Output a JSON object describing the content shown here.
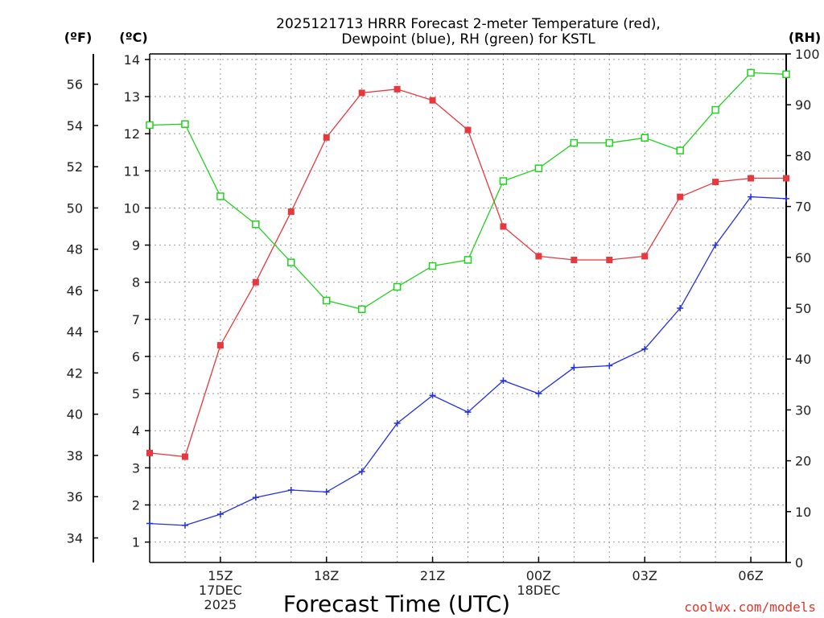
{
  "chart_data": {
    "type": "line",
    "title_line1": "2025121713 HRRR Forecast 2-meter Temperature (red),",
    "title_line2": "Dewpoint (blue), RH (green) for KSTL",
    "xlabel": "Forecast Time (UTC)",
    "credit": "coolwx.com/models",
    "unit_f": "(ºF)",
    "unit_c": "(ºC)",
    "unit_rh": "(RH)",
    "x_hours": [
      13,
      14,
      15,
      16,
      17,
      18,
      19,
      20,
      21,
      22,
      23,
      24,
      25,
      26,
      27,
      28,
      29,
      30,
      31
    ],
    "x_ticks": [
      {
        "hour": 15,
        "line1": "15Z",
        "line2": "17DEC",
        "line3": "2025"
      },
      {
        "hour": 18,
        "line1": "18Z",
        "line2": "",
        "line3": ""
      },
      {
        "hour": 21,
        "line1": "21Z",
        "line2": "",
        "line3": ""
      },
      {
        "hour": 24,
        "line1": "00Z",
        "line2": "18DEC",
        "line3": ""
      },
      {
        "hour": 27,
        "line1": "03Z",
        "line2": "",
        "line3": ""
      },
      {
        "hour": 30,
        "line1": "06Z",
        "line2": "",
        "line3": ""
      }
    ],
    "xlim": [
      13,
      31
    ],
    "ylim_c": [
      0.45,
      14.15
    ],
    "ylim_rh": [
      0,
      100
    ],
    "ylim_f": [
      32.81,
      57.47
    ],
    "yticks_c": [
      "1",
      "2",
      "3",
      "4",
      "5",
      "6",
      "7",
      "8",
      "9",
      "10",
      "11",
      "12",
      "13",
      "14"
    ],
    "yticks_f": [
      "34",
      "36",
      "38",
      "40",
      "42",
      "44",
      "46",
      "48",
      "50",
      "52",
      "54",
      "56"
    ],
    "yticks_rh": [
      "0",
      "10",
      "20",
      "30",
      "40",
      "50",
      "60",
      "70",
      "80",
      "90",
      "100"
    ],
    "series": [
      {
        "name": "Temperature",
        "unit": "C",
        "color": "#e8383d",
        "marker": "filled-square",
        "values": [
          3.4,
          3.3,
          6.3,
          8.0,
          9.9,
          11.9,
          13.1,
          13.2,
          12.9,
          12.1,
          9.5,
          8.7,
          8.6,
          8.6,
          8.7,
          10.3,
          10.7,
          10.8,
          10.8
        ]
      },
      {
        "name": "Dewpoint",
        "unit": "C",
        "color": "#2330e0",
        "marker": "plus",
        "values": [
          1.5,
          1.45,
          1.75,
          2.2,
          2.4,
          2.35,
          2.9,
          4.2,
          4.95,
          4.5,
          5.35,
          5.0,
          5.7,
          5.75,
          6.2,
          7.3,
          9.0,
          10.3,
          10.25
        ]
      },
      {
        "name": "RH",
        "unit": "%",
        "color": "#22d11f",
        "marker": "open-square",
        "values": [
          86,
          86.2,
          72,
          66.5,
          59,
          51.5,
          49.8,
          54.2,
          58.3,
          59.5,
          75,
          77.5,
          82.5,
          82.5,
          83.5,
          81,
          89,
          96.3,
          96
        ]
      }
    ]
  }
}
